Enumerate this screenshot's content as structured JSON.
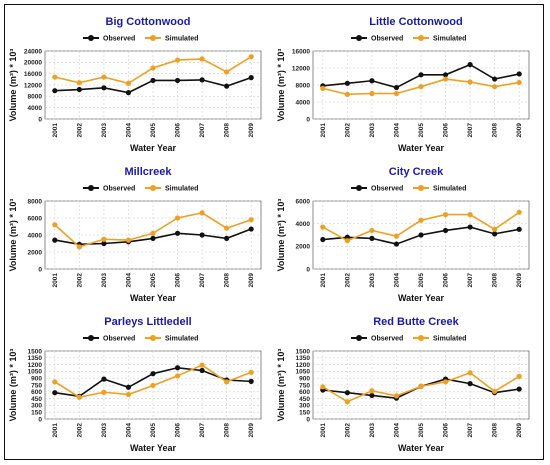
{
  "colors": {
    "observed": "#111111",
    "simulated": "#f0a020",
    "title": "#1a1aa6",
    "grid": "#cfcfcf"
  },
  "chart_data": [
    {
      "type": "line",
      "title": "Big Cottonwood",
      "xlabel": "Water Year",
      "ylabel": "Volume (m³) * 10³",
      "categories": [
        "2001",
        "2002",
        "2003",
        "2004",
        "2005",
        "2006",
        "2007",
        "2008",
        "2009"
      ],
      "yticks": [
        0,
        4000,
        8000,
        12000,
        16000,
        20000,
        24000
      ],
      "ylim": [
        0,
        24000
      ],
      "legend": "top",
      "series": [
        {
          "name": "Observed",
          "values": [
            10000,
            10400,
            11000,
            9300,
            13600,
            13600,
            13800,
            11600,
            14600
          ]
        },
        {
          "name": "Simulated",
          "values": [
            14800,
            12800,
            14800,
            12600,
            18000,
            20800,
            21200,
            16600,
            22000
          ]
        }
      ]
    },
    {
      "type": "line",
      "title": "Little Cottonwood",
      "xlabel": "Water Year",
      "ylabel": "Volume (m³) * 10³",
      "categories": [
        "2001",
        "2002",
        "2003",
        "2004",
        "2005",
        "2006",
        "2007",
        "2008",
        "2009"
      ],
      "yticks": [
        0,
        4000,
        8000,
        12000,
        16000
      ],
      "ylim": [
        0,
        16000
      ],
      "legend": "top",
      "series": [
        {
          "name": "Observed",
          "values": [
            7800,
            8400,
            9000,
            7400,
            10400,
            10400,
            12800,
            9400,
            10600
          ]
        },
        {
          "name": "Simulated",
          "values": [
            7200,
            5800,
            6000,
            6000,
            7600,
            9400,
            8700,
            7600,
            8600
          ]
        }
      ]
    },
    {
      "type": "line",
      "title": "Millcreek",
      "xlabel": "Water Year",
      "ylabel": "Volume (m³) * 10³",
      "categories": [
        "2001",
        "2002",
        "2003",
        "2004",
        "2005",
        "2006",
        "2007",
        "2008",
        "2009"
      ],
      "yticks": [
        0,
        2000,
        4000,
        6000,
        8000
      ],
      "ylim": [
        0,
        8000
      ],
      "legend": "top",
      "series": [
        {
          "name": "Observed",
          "values": [
            3400,
            2900,
            3000,
            3200,
            3600,
            4200,
            4000,
            3600,
            4700
          ]
        },
        {
          "name": "Simulated",
          "values": [
            5200,
            2600,
            3500,
            3400,
            4200,
            6000,
            6600,
            4800,
            5800
          ]
        }
      ]
    },
    {
      "type": "line",
      "title": "City Creek",
      "xlabel": "Water Year",
      "ylabel": "Volume (m³) * 10³",
      "categories": [
        "2001",
        "2002",
        "2003",
        "2004",
        "2005",
        "2006",
        "2007",
        "2008",
        "2009"
      ],
      "yticks": [
        0,
        2000,
        4000,
        6000
      ],
      "ylim": [
        0,
        6000
      ],
      "legend": "top",
      "series": [
        {
          "name": "Observed",
          "values": [
            2600,
            2800,
            2700,
            2200,
            3000,
            3400,
            3700,
            3100,
            3500
          ]
        },
        {
          "name": "Simulated",
          "values": [
            3700,
            2500,
            3400,
            2900,
            4300,
            4800,
            4800,
            3500,
            5000
          ]
        }
      ]
    },
    {
      "type": "line",
      "title": "Parleys Littledell",
      "xlabel": "Water Year",
      "ylabel": "Volume (m³) * 10³",
      "categories": [
        "2001",
        "2002",
        "2003",
        "2004",
        "2005",
        "2006",
        "2007",
        "2008",
        "2009"
      ],
      "yticks": [
        0,
        150,
        300,
        450,
        600,
        750,
        900,
        1050,
        1200,
        1350,
        1500
      ],
      "ylim": [
        0,
        1500
      ],
      "legend": "top",
      "series": [
        {
          "name": "Observed",
          "values": [
            580,
            500,
            880,
            700,
            1000,
            1130,
            1070,
            860,
            830
          ]
        },
        {
          "name": "Simulated",
          "values": [
            820,
            480,
            590,
            540,
            740,
            950,
            1190,
            820,
            1030
          ]
        }
      ]
    },
    {
      "type": "line",
      "title": "Red Butte Creek",
      "xlabel": "Water Year",
      "ylabel": "Volume (m³) * 10³",
      "categories": [
        "2001",
        "2002",
        "2003",
        "2004",
        "2005",
        "2006",
        "2007",
        "2008",
        "2009"
      ],
      "yticks": [
        0,
        150,
        300,
        450,
        600,
        750,
        900,
        1050,
        1200,
        1350,
        1500
      ],
      "ylim": [
        0,
        1500
      ],
      "legend": "top",
      "series": [
        {
          "name": "Observed",
          "values": [
            640,
            580,
            520,
            460,
            720,
            880,
            780,
            580,
            660
          ]
        },
        {
          "name": "Simulated",
          "values": [
            710,
            380,
            620,
            510,
            720,
            820,
            1020,
            610,
            940
          ]
        }
      ]
    }
  ]
}
